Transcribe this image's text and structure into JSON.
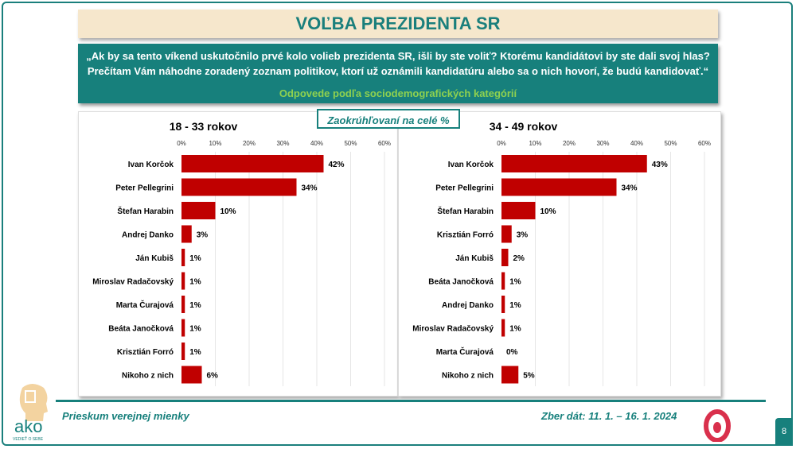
{
  "title": "VOĽBA PREZIDENTA SR",
  "question": {
    "line1": "„Ak by sa tento víkend uskutočnilo prvé kolo volieb prezidenta SR, išli by ste voliť? Ktorému kandidátovi by ste dali svoj hlas?",
    "line2": "Prečítam Vám náhodne zoradený zoznam politikov, ktorí už oznámili kandidatúru alebo sa o nich hovorí, že budú kandidovať.“",
    "sub": "Odpovede podľa sociodemografických kategórií"
  },
  "note": "Zaokrúhľovaní na celé %",
  "footer": {
    "left": "Prieskum verejnej mienky",
    "right": "Zber dát: 11. 1. – 16. 1. 2024",
    "page": "8",
    "logo_text": "ako",
    "logo_tagline": "VEDIEŤ O SEBE"
  },
  "colors": {
    "bar": "#c00000",
    "teal": "#17807c"
  },
  "chart_data": [
    {
      "type": "bar",
      "orientation": "horizontal",
      "title": "18 - 33 rokov",
      "xlim": [
        0,
        60
      ],
      "ticks": [
        "0%",
        "10%",
        "20%",
        "30%",
        "40%",
        "50%",
        "60%"
      ],
      "grid": true,
      "categories": [
        "Ivan Korčok",
        "Peter Pellegrini",
        "Štefan Harabin",
        "Andrej Danko",
        "Ján Kubiš",
        "Miroslav Radačovský",
        "Marta Čurajová",
        "Beáta Janočková",
        "Krisztián Forró",
        "Nikoho z nich"
      ],
      "values": [
        42,
        34,
        10,
        3,
        1,
        1,
        1,
        1,
        1,
        6
      ],
      "labels": [
        "42%",
        "34%",
        "10%",
        "3%",
        "1%",
        "1%",
        "1%",
        "1%",
        "1%",
        "6%"
      ]
    },
    {
      "type": "bar",
      "orientation": "horizontal",
      "title": "34 - 49 rokov",
      "xlim": [
        0,
        60
      ],
      "ticks": [
        "0%",
        "10%",
        "20%",
        "30%",
        "40%",
        "50%",
        "60%"
      ],
      "grid": true,
      "categories": [
        "Ivan Korčok",
        "Peter Pellegrini",
        "Štefan Harabin",
        "Krisztián Forró",
        "Ján Kubiš",
        "Beáta Janočková",
        "Andrej Danko",
        "Miroslav Radačovský",
        "Marta Čurajová",
        "Nikoho z nich"
      ],
      "values": [
        43,
        34,
        10,
        3,
        2,
        1,
        1,
        1,
        0,
        5
      ],
      "labels": [
        "43%",
        "34%",
        "10%",
        "3%",
        "2%",
        "1%",
        "1%",
        "1%",
        "0%",
        "5%"
      ]
    }
  ]
}
